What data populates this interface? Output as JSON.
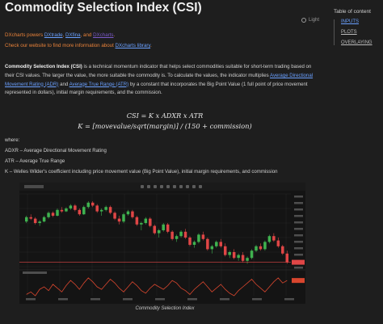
{
  "page": {
    "title": "Commodity Selection Index (CSI)",
    "theme_label": "Light"
  },
  "intro": {
    "powers_prefix": "DXcharts powers ",
    "link1": "DXtrade",
    "sep1": ", ",
    "link2": "DXfina",
    "sep2": ", and ",
    "link3": "DXcharts",
    "suffix": ".",
    "visit_prefix": "Check our website to find more information about ",
    "visit_link": "DXcharts library",
    "visit_suffix": "."
  },
  "description": {
    "term": "Commodity Selection Index (CSI)",
    "part1": " is a technical momentum indicator that helps select commodities suitable for short-term trading based on their CSI values. The larger the value, the more suitable the commodity is. To calculate the values, the indicator multiplies ",
    "link_adr": "Average Directional Movement Rating (ADR)",
    "and": " and ",
    "link_atr": "Average True Range (ATR)",
    "part2": " by a constant that incorporates the Big Point Value (1 full point of price movement represented in dollars), initial margin requirements, and the commission."
  },
  "formula": {
    "line1": "CSI = K x ADXR x ATR",
    "line2": "K = [movevalue/sqrt(margin)] / (150 + commission)"
  },
  "definitions": {
    "where": "where:",
    "adxr": "ADXR – Average Directional Movement Rating",
    "atr": "ATR – Average True Range",
    "k": "K – Welles Wilder's coefficient including price movement value (Big Point Value), initial margin requirements, and commission"
  },
  "toc": {
    "title": "Table of content",
    "items": [
      "INPUTS",
      "PLOTS",
      "OVERLAYING"
    ]
  },
  "figure": {
    "caption": "Commodity Selection Index",
    "colors": {
      "up": "#3fb24f",
      "down": "#e04646",
      "indicator": "#d8462e",
      "bg": "#141414",
      "grid": "#262626"
    },
    "price_range": [
      0,
      100
    ],
    "price_bars": [
      [
        62,
        70,
        60,
        68
      ],
      [
        68,
        72,
        64,
        66
      ],
      [
        66,
        68,
        58,
        60
      ],
      [
        60,
        64,
        56,
        62
      ],
      [
        62,
        70,
        61,
        68
      ],
      [
        68,
        76,
        66,
        74
      ],
      [
        74,
        76,
        68,
        70
      ],
      [
        70,
        80,
        69,
        78
      ],
      [
        78,
        82,
        74,
        76
      ],
      [
        76,
        82,
        75,
        80
      ],
      [
        80,
        86,
        78,
        84
      ],
      [
        84,
        86,
        76,
        78
      ],
      [
        78,
        80,
        70,
        72
      ],
      [
        72,
        84,
        71,
        82
      ],
      [
        82,
        90,
        80,
        88
      ],
      [
        88,
        90,
        82,
        84
      ],
      [
        84,
        86,
        74,
        76
      ],
      [
        76,
        80,
        70,
        78
      ],
      [
        78,
        84,
        76,
        82
      ],
      [
        82,
        84,
        72,
        74
      ],
      [
        74,
        76,
        64,
        66
      ],
      [
        66,
        70,
        58,
        62
      ],
      [
        62,
        74,
        60,
        72
      ],
      [
        72,
        78,
        70,
        76
      ],
      [
        76,
        78,
        66,
        68
      ],
      [
        68,
        70,
        56,
        58
      ],
      [
        58,
        62,
        50,
        60
      ],
      [
        60,
        68,
        58,
        66
      ],
      [
        66,
        68,
        54,
        56
      ],
      [
        56,
        58,
        44,
        46
      ],
      [
        46,
        52,
        40,
        50
      ],
      [
        50,
        60,
        48,
        58
      ],
      [
        58,
        60,
        46,
        48
      ],
      [
        48,
        50,
        36,
        38
      ],
      [
        38,
        44,
        34,
        42
      ],
      [
        42,
        50,
        40,
        48
      ],
      [
        48,
        52,
        38,
        40
      ],
      [
        40,
        42,
        28,
        30
      ],
      [
        30,
        36,
        26,
        34
      ],
      [
        34,
        46,
        32,
        44
      ],
      [
        44,
        48,
        36,
        38
      ],
      [
        38,
        40,
        22,
        24
      ],
      [
        24,
        30,
        18,
        28
      ],
      [
        28,
        36,
        26,
        34
      ],
      [
        34,
        38,
        26,
        28
      ],
      [
        28,
        32,
        14,
        16
      ],
      [
        16,
        22,
        12,
        20
      ],
      [
        20,
        24,
        10,
        12
      ],
      [
        12,
        18,
        8,
        16
      ],
      [
        16,
        20,
        6,
        8
      ],
      [
        8,
        14,
        4,
        12
      ],
      [
        12,
        24,
        10,
        22
      ],
      [
        22,
        30,
        20,
        28
      ],
      [
        28,
        32,
        22,
        24
      ],
      [
        24,
        36,
        22,
        34
      ],
      [
        34,
        44,
        32,
        42
      ],
      [
        42,
        46,
        34,
        36
      ],
      [
        36,
        40,
        26,
        28
      ],
      [
        28,
        30,
        16,
        18
      ],
      [
        18,
        22,
        4,
        6
      ]
    ],
    "indicator_values": [
      22,
      24,
      21,
      26,
      28,
      25,
      30,
      27,
      24,
      29,
      33,
      30,
      26,
      31,
      35,
      32,
      28,
      26,
      30,
      34,
      31,
      27,
      24,
      28,
      32,
      29,
      25,
      23,
      27,
      30,
      28,
      26,
      29,
      33,
      31,
      27,
      25,
      22,
      26,
      29,
      32,
      28,
      24,
      27,
      30,
      26,
      23,
      21,
      25,
      28,
      31,
      34,
      30,
      27,
      24,
      28,
      32,
      35,
      31,
      33
    ]
  }
}
